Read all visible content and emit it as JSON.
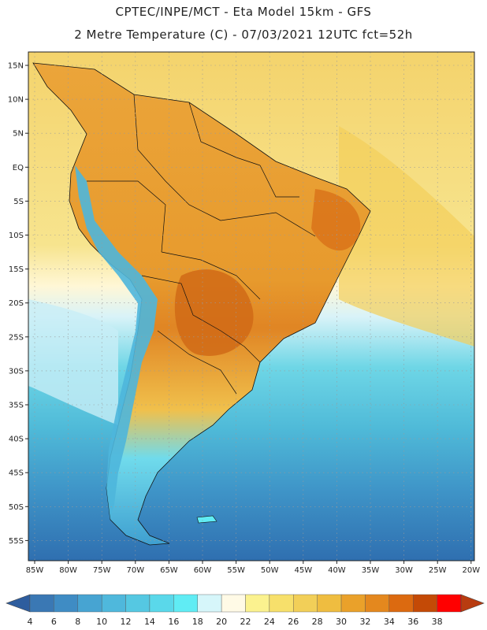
{
  "header": {
    "line1": "CPTEC/INPE/MCT -  Eta Model 15km - GFS",
    "line2": "2 Metre Temperature (C) - 07/03/2021 12UTC fct=52h"
  },
  "map": {
    "region": "South America",
    "lat_labels": [
      "15N",
      "10N",
      "5N",
      "EQ",
      "5S",
      "10S",
      "15S",
      "20S",
      "25S",
      "30S",
      "35S",
      "40S",
      "45S",
      "50S",
      "55S"
    ],
    "lon_labels": [
      "85W",
      "80W",
      "75W",
      "70W",
      "65W",
      "60W",
      "55W",
      "50W",
      "45W",
      "40W",
      "35W",
      "30W",
      "25W",
      "20W"
    ]
  },
  "colorbar": {
    "ticks": [
      "4",
      "6",
      "8",
      "10",
      "12",
      "14",
      "16",
      "18",
      "20",
      "22",
      "24",
      "26",
      "28",
      "30",
      "32",
      "34",
      "36",
      "38"
    ],
    "colors": [
      "#3a78b4",
      "#3f8cc4",
      "#47a4d2",
      "#4fb8dc",
      "#55c8e2",
      "#5ad8ea",
      "#60ecf4",
      "#d6f6fa",
      "#fffae6",
      "#fbf28f",
      "#f7e06b",
      "#f2cf58",
      "#efbd40",
      "#eaa12a",
      "#e4881e",
      "#dc6a10",
      "#c44a06",
      "#ff0000"
    ],
    "low_color": "#2e5d9e",
    "high_color": "#b83c10"
  }
}
